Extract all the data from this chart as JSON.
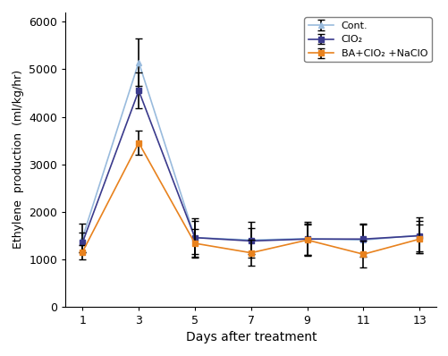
{
  "x": [
    1,
    3,
    5,
    7,
    9,
    11,
    13
  ],
  "series": {
    "Cont.": {
      "y": [
        1450,
        5150,
        1450,
        1400,
        1430,
        1400,
        1500
      ],
      "yerr": [
        300,
        500,
        400,
        380,
        350,
        350,
        380
      ],
      "color": "#99BBDD",
      "marker": "^",
      "zorder": 2
    },
    "ClO₂": {
      "y": [
        1350,
        4550,
        1450,
        1380,
        1420,
        1420,
        1490
      ],
      "yerr": [
        200,
        380,
        350,
        280,
        330,
        300,
        320
      ],
      "color": "#3A3A8C",
      "marker": "s",
      "zorder": 3
    },
    "BA+ClO₂ +NaClO": {
      "y": [
        1150,
        3450,
        1330,
        1130,
        1400,
        1100,
        1420
      ],
      "yerr": [
        150,
        250,
        300,
        270,
        330,
        280,
        300
      ],
      "color": "#E8821E",
      "marker": "s",
      "zorder": 4
    }
  },
  "xlabel": "Days after treatment",
  "ylabel": "Ethylene  production  (ml/kg/hr)",
  "ylim": [
    0,
    6200
  ],
  "yticks": [
    0,
    1000,
    2000,
    3000,
    4000,
    5000,
    6000
  ],
  "xticks": [
    1,
    3,
    5,
    7,
    9,
    11,
    13
  ],
  "legend_loc": "upper right",
  "figsize": [
    5.02,
    3.98
  ],
  "dpi": 100,
  "background_color": "#FFFFFF",
  "elinewidth": 1.2,
  "capsize": 3,
  "linewidth": 1.2,
  "markersize": 5
}
